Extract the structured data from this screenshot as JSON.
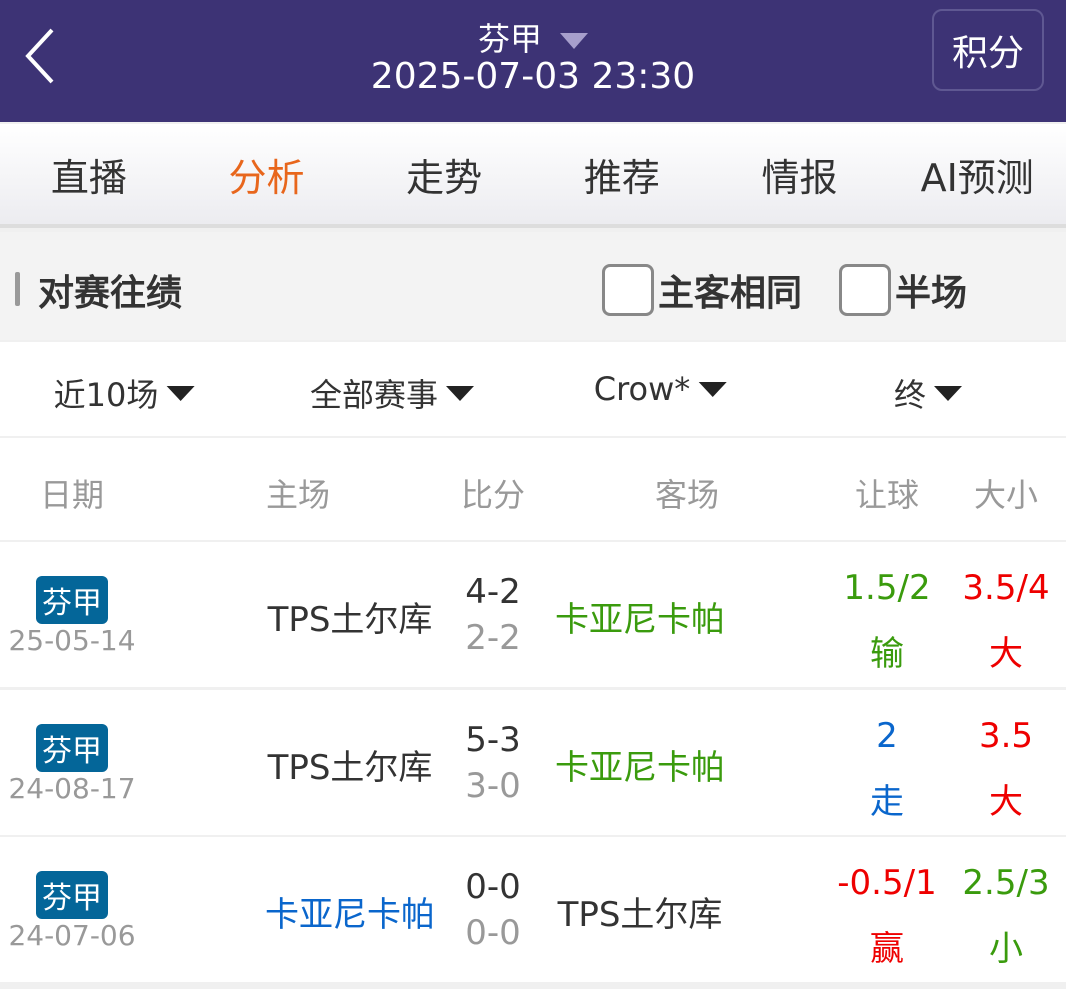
{
  "header": {
    "title": "芬甲",
    "datetime": "2025-07-03 23:30",
    "points_button": "积分"
  },
  "tabs": [
    {
      "label": "直播"
    },
    {
      "label": "分析",
      "active": true
    },
    {
      "label": "走势"
    },
    {
      "label": "推荐"
    },
    {
      "label": "情报"
    },
    {
      "label": "AI预测"
    }
  ],
  "section": {
    "title": "对赛往绩",
    "checkbox_same": "主客相同",
    "checkbox_half": "半场"
  },
  "filters": {
    "count": "近10场",
    "league": "全部赛事",
    "company": "Crow*",
    "period": "终"
  },
  "columns": {
    "date": "日期",
    "home": "主场",
    "score": "比分",
    "away": "客场",
    "handicap": "让球",
    "ou": "大小"
  },
  "colors": {
    "header_bg": "#3d3375",
    "accent": "#e8661c",
    "badge": "#046699",
    "green": "#3a9b0d",
    "red": "#ee0000",
    "blue": "#0a66cc"
  },
  "rows": [
    {
      "league": "芬甲",
      "date": "25-05-14",
      "home": "TPS土尔库",
      "home_color": "#333333",
      "score_ft": "4-2",
      "score_ht": "2-2",
      "away": "卡亚尼卡帕",
      "away_color": "#3a9b0d",
      "handicap": "1.5/2",
      "handicap_result": "输",
      "handicap_color": "#3a9b0d",
      "ou": "3.5/4",
      "ou_result": "大",
      "ou_color": "#ee0000"
    },
    {
      "league": "芬甲",
      "date": "24-08-17",
      "home": "TPS土尔库",
      "home_color": "#333333",
      "score_ft": "5-3",
      "score_ht": "3-0",
      "away": "卡亚尼卡帕",
      "away_color": "#3a9b0d",
      "handicap": "2",
      "handicap_result": "走",
      "handicap_color": "#0a66cc",
      "ou": "3.5",
      "ou_result": "大",
      "ou_color": "#ee0000"
    },
    {
      "league": "芬甲",
      "date": "24-07-06",
      "home": "卡亚尼卡帕",
      "home_color": "#0a66cc",
      "score_ft": "0-0",
      "score_ht": "0-0",
      "away": "TPS土尔库",
      "away_color": "#333333",
      "handicap": "-0.5/1",
      "handicap_result": "赢",
      "handicap_color": "#ee0000",
      "ou": "2.5/3",
      "ou_result": "小",
      "ou_color": "#3a9b0d"
    }
  ]
}
